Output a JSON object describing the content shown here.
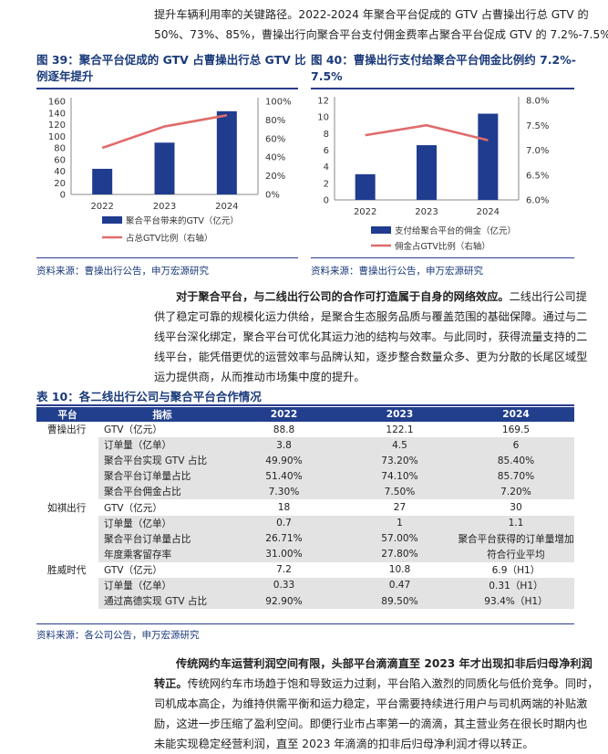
{
  "para_top": {
    "line1": "提升车辆利用率的关键路径。2022-2024 年聚合平台促成的 GTV 占曹操出行总 GTV 的",
    "line2": "50%、73%、85%，曹操出行向聚合平台支付佣金费率占聚合平台促成 GTV 的 7.2%-7.5%。"
  },
  "fig39": {
    "title_line1": "图 39：聚合平台促成的 GTV 占曹操出行总 GTV 比",
    "title_line2": "例逐年提升",
    "source": "资料来源：曹操出行公告，申万宏源研究"
  },
  "fig40": {
    "title_line1": "图 40：曹操出行支付给聚合平台佣金比例约 7.2%-",
    "title_line2": "7.5%",
    "source": "资料来源：曹操出行公告，申万宏源研究"
  },
  "chart_data": [
    {
      "type": "bar",
      "categories": [
        "2022",
        "2023",
        "2024"
      ],
      "series": [
        {
          "name": "聚合平台带来的GTV（亿元）",
          "axis": "left",
          "kind": "bar",
          "values": [
            44,
            89,
            143
          ],
          "color": "#1f3c8f"
        },
        {
          "name": "占总GTV比例（右轴）",
          "axis": "right",
          "kind": "line",
          "values": [
            0.5,
            0.73,
            0.85
          ],
          "color": "#e06b6b"
        }
      ],
      "left_axis": {
        "ylim": [
          0,
          160
        ],
        "ticks": [
          "0",
          "20",
          "40",
          "60",
          "80",
          "100",
          "120",
          "140",
          "160"
        ]
      },
      "right_axis": {
        "ylim": [
          0,
          1.0
        ],
        "ticks": [
          "0%",
          "20%",
          "40%",
          "60%",
          "80%",
          "100%"
        ]
      },
      "title": "",
      "xlabel": "",
      "ylabel": "",
      "legend": "bottom"
    },
    {
      "type": "bar",
      "categories": [
        "2022",
        "2023",
        "2024"
      ],
      "series": [
        {
          "name": "支付给聚合平台的佣金（亿元）",
          "axis": "left",
          "kind": "bar",
          "values": [
            3.1,
            6.6,
            10.4
          ],
          "color": "#1f3c8f"
        },
        {
          "name": "佣金占GTV比例（右轴）",
          "axis": "right",
          "kind": "line",
          "values": [
            0.073,
            0.075,
            0.072
          ],
          "color": "#e06b6b"
        }
      ],
      "left_axis": {
        "ylim": [
          0,
          12
        ],
        "ticks": [
          "0",
          "2",
          "4",
          "6",
          "8",
          "10",
          "12"
        ]
      },
      "right_axis": {
        "ylim": [
          0.06,
          0.08
        ],
        "ticks": [
          "6.0%",
          "6.5%",
          "7.0%",
          "7.5%",
          "8.0%"
        ]
      },
      "title": "",
      "xlabel": "",
      "ylabel": "",
      "legend": "bottom"
    }
  ],
  "para_mid": {
    "lead": "对于聚合平台，与二线出行公司的合作可打造属于自身的网络效应。",
    "l1": "二线出行公司提",
    "l2": "供了稳定可靠的规模化运力供给，是聚合生态服务品质与覆盖范围的基础保障。通过与二",
    "l3": "线平台深化绑定，聚合平台可优化其运力池的结构与效率。与此同时，获得流量支持的二",
    "l4": "线平台，能凭借更优的运营效率与品牌认知，逐步整合数量众多、更为分散的长尾区域型",
    "l5": "运力提供商，从而推动市场集中度的提升。"
  },
  "table10": {
    "title": "表 10：各二线出行公司与聚合平台合作情况",
    "headers": [
      "平台",
      "指标",
      "2022",
      "2023",
      "2024"
    ],
    "rows": [
      {
        "company": "曹操出行",
        "metric": "GTV（亿元）",
        "v2022": "88.8",
        "v2023": "122.1",
        "v2024": "169.5"
      },
      {
        "company": "",
        "metric": "订单量（亿单）",
        "v2022": "3.8",
        "v2023": "4.5",
        "v2024": "6"
      },
      {
        "company": "",
        "metric": "聚合平台实现 GTV 占比",
        "v2022": "49.90%",
        "v2023": "73.20%",
        "v2024": "85.40%"
      },
      {
        "company": "",
        "metric": "聚合平台订单量占比",
        "v2022": "51.40%",
        "v2023": "74.10%",
        "v2024": "85.70%"
      },
      {
        "company": "",
        "metric": "聚合平台佣金占比",
        "v2022": "7.30%",
        "v2023": "7.50%",
        "v2024": "7.20%"
      },
      {
        "company": "如祺出行",
        "metric": "GTV（亿元）",
        "v2022": "18",
        "v2023": "27",
        "v2024": "30"
      },
      {
        "company": "",
        "metric": "订单量（亿单）",
        "v2022": "0.7",
        "v2023": "1",
        "v2024": "1.1"
      },
      {
        "company": "",
        "metric": "聚合平台订单量占比",
        "v2022": "26.71%",
        "v2023": "57.00%",
        "v2024": "聚合平台获得的订单量增加"
      },
      {
        "company": "",
        "metric": "年度乘客留存率",
        "v2022": "31.00%",
        "v2023": "27.80%",
        "v2024": "符合行业平均"
      },
      {
        "company": "胜威时代",
        "metric": "GTV（亿元）",
        "v2022": "7.2",
        "v2023": "10.8",
        "v2024": "6.9（H1）"
      },
      {
        "company": "",
        "metric": "订单量（亿单）",
        "v2022": "0.33",
        "v2023": "0.47",
        "v2024": "0.31（H1）"
      },
      {
        "company": "",
        "metric": "通过高德实现 GTV 占比",
        "v2022": "92.90%",
        "v2023": "89.50%",
        "v2024": "93.4%（H1）"
      }
    ],
    "source": "资料来源：各公司公告，申万宏源研究"
  },
  "para_bot": {
    "lead": "传统网约车运营利润空间有限，头部平台滴滴直至 2023 年才出现扣非后归母净利润",
    "lead2": "转正。",
    "l1": "传统网约车市场趋于饱和导致运力过剩，平台陷入激烈的同质化与低价竞争。同时，",
    "l2": "司机成本高企，为维持供需平衡和运力稳定，平台需要持续进行用户与司机两端的补贴激",
    "l3": "励，这进一步压缩了盈利空间。即便行业市占率第一的滴滴，其主营业务在很长时期内也",
    "l4": "未能实现稳定经营利润，直至 2023 年滴滴的扣非后归母净利润才得以转正。"
  }
}
